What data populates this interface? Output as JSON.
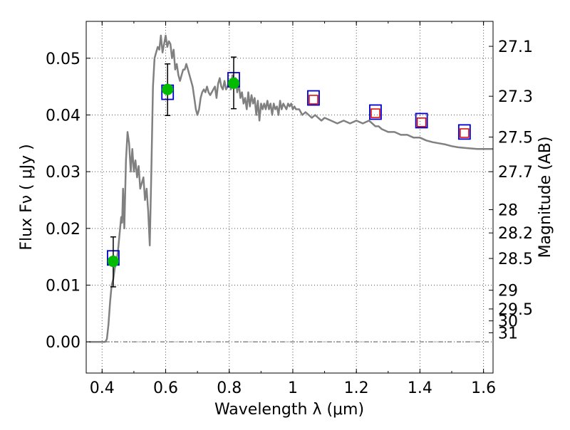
{
  "chart_data": {
    "type": "scatter",
    "title": "",
    "xlabel": "Wavelength  λ (μm)",
    "ylabel": "Flux  Fν  ( μJy )",
    "right_ylabel": "Magnitude (AB)",
    "xlim": [
      0.35,
      1.63
    ],
    "ylim": [
      -0.0055,
      0.0565
    ],
    "grid": true,
    "x_ticks": [
      0.4,
      0.6,
      0.8,
      1.0,
      1.2,
      1.4,
      1.6
    ],
    "x_tick_labels": [
      "0.4",
      "0.6",
      "0.8",
      "1",
      "1.2",
      "1.4",
      "1.6"
    ],
    "y_ticks": [
      0.0,
      0.01,
      0.02,
      0.03,
      0.04,
      0.05
    ],
    "y_tick_labels": [
      "0.00",
      "0.01",
      "0.02",
      "0.03",
      "0.04",
      "0.05"
    ],
    "right_ticks": [
      {
        "label": "27.1",
        "flux": 0.0521
      },
      {
        "label": "27.3",
        "flux": 0.0433
      },
      {
        "label": "27.5",
        "flux": 0.0361
      },
      {
        "label": "27.7",
        "flux": 0.03
      },
      {
        "label": "28",
        "flux": 0.0233
      },
      {
        "label": "28.2",
        "flux": 0.0192
      },
      {
        "label": "28.5",
        "flux": 0.0147
      },
      {
        "label": "29",
        "flux": 0.0091
      },
      {
        "label": "29.5",
        "flux": 0.0058
      },
      {
        "label": "30",
        "flux": 0.0037
      },
      {
        "label": "31",
        "flux": 0.0016
      }
    ],
    "colors": {
      "model": "#808080",
      "observed": "#00bb00",
      "model_box": "#0000cc",
      "predicted_box": "#dd0000",
      "errorbar": "#000000",
      "grid": "#555555"
    },
    "series": [
      {
        "kind": "model_spectrum",
        "points": [
          [
            0.36,
            0.0
          ],
          [
            0.4,
            0.0
          ],
          [
            0.41,
            0.0
          ],
          [
            0.415,
            0.0005
          ],
          [
            0.42,
            0.003
          ],
          [
            0.425,
            0.007
          ],
          [
            0.43,
            0.01
          ],
          [
            0.435,
            0.011
          ],
          [
            0.44,
            0.013
          ],
          [
            0.445,
            0.014
          ],
          [
            0.45,
            0.016
          ],
          [
            0.455,
            0.019
          ],
          [
            0.46,
            0.022
          ],
          [
            0.463,
            0.021
          ],
          [
            0.466,
            0.027
          ],
          [
            0.47,
            0.02
          ],
          [
            0.475,
            0.032
          ],
          [
            0.48,
            0.037
          ],
          [
            0.485,
            0.035
          ],
          [
            0.49,
            0.03
          ],
          [
            0.495,
            0.034
          ],
          [
            0.5,
            0.03
          ],
          [
            0.505,
            0.032
          ],
          [
            0.51,
            0.029
          ],
          [
            0.515,
            0.031
          ],
          [
            0.52,
            0.027
          ],
          [
            0.53,
            0.029
          ],
          [
            0.535,
            0.025
          ],
          [
            0.54,
            0.027
          ],
          [
            0.545,
            0.023
          ],
          [
            0.55,
            0.017
          ],
          [
            0.555,
            0.03
          ],
          [
            0.56,
            0.045
          ],
          [
            0.565,
            0.05
          ],
          [
            0.57,
            0.051
          ],
          [
            0.575,
            0.052
          ],
          [
            0.58,
            0.0515
          ],
          [
            0.585,
            0.054
          ],
          [
            0.59,
            0.051
          ],
          [
            0.595,
            0.0525
          ],
          [
            0.6,
            0.054
          ],
          [
            0.605,
            0.052
          ],
          [
            0.61,
            0.053
          ],
          [
            0.615,
            0.0525
          ],
          [
            0.62,
            0.05
          ],
          [
            0.625,
            0.0515
          ],
          [
            0.63,
            0.048
          ],
          [
            0.635,
            0.049
          ],
          [
            0.64,
            0.047
          ],
          [
            0.645,
            0.046
          ],
          [
            0.65,
            0.047
          ],
          [
            0.655,
            0.048
          ],
          [
            0.66,
            0.048
          ],
          [
            0.665,
            0.049
          ],
          [
            0.67,
            0.048
          ],
          [
            0.675,
            0.047
          ],
          [
            0.68,
            0.046
          ],
          [
            0.685,
            0.045
          ],
          [
            0.69,
            0.043
          ],
          [
            0.695,
            0.041
          ],
          [
            0.7,
            0.04
          ],
          [
            0.705,
            0.041
          ],
          [
            0.71,
            0.043
          ],
          [
            0.715,
            0.044
          ],
          [
            0.72,
            0.0445
          ],
          [
            0.725,
            0.044
          ],
          [
            0.73,
            0.045
          ],
          [
            0.735,
            0.044
          ],
          [
            0.74,
            0.0435
          ],
          [
            0.745,
            0.044
          ],
          [
            0.75,
            0.0445
          ],
          [
            0.755,
            0.045
          ],
          [
            0.76,
            0.043
          ],
          [
            0.765,
            0.0455
          ],
          [
            0.77,
            0.0465
          ],
          [
            0.775,
            0.045
          ],
          [
            0.78,
            0.0445
          ],
          [
            0.785,
            0.046
          ],
          [
            0.79,
            0.0445
          ],
          [
            0.795,
            0.045
          ],
          [
            0.8,
            0.046
          ],
          [
            0.805,
            0.0445
          ],
          [
            0.81,
            0.047
          ],
          [
            0.815,
            0.045
          ],
          [
            0.82,
            0.0465
          ],
          [
            0.825,
            0.044
          ],
          [
            0.83,
            0.0455
          ],
          [
            0.835,
            0.043
          ],
          [
            0.84,
            0.044
          ],
          [
            0.845,
            0.042
          ],
          [
            0.85,
            0.043
          ],
          [
            0.855,
            0.041
          ],
          [
            0.86,
            0.044
          ],
          [
            0.865,
            0.0415
          ],
          [
            0.87,
            0.0435
          ],
          [
            0.875,
            0.042
          ],
          [
            0.88,
            0.043
          ],
          [
            0.885,
            0.04
          ],
          [
            0.89,
            0.0425
          ],
          [
            0.895,
            0.039
          ],
          [
            0.9,
            0.042
          ],
          [
            0.905,
            0.041
          ],
          [
            0.91,
            0.042
          ],
          [
            0.915,
            0.041
          ],
          [
            0.92,
            0.0425
          ],
          [
            0.925,
            0.041
          ],
          [
            0.93,
            0.042
          ],
          [
            0.935,
            0.04
          ],
          [
            0.94,
            0.042
          ],
          [
            0.945,
            0.041
          ],
          [
            0.95,
            0.0415
          ],
          [
            0.955,
            0.04
          ],
          [
            0.96,
            0.0425
          ],
          [
            0.965,
            0.041
          ],
          [
            0.97,
            0.042
          ],
          [
            0.975,
            0.0415
          ],
          [
            0.98,
            0.041
          ],
          [
            0.985,
            0.042
          ],
          [
            0.99,
            0.0415
          ],
          [
            0.995,
            0.042
          ],
          [
            1.0,
            0.041
          ],
          [
            1.005,
            0.0415
          ],
          [
            1.01,
            0.041
          ],
          [
            1.02,
            0.041
          ],
          [
            1.03,
            0.04
          ],
          [
            1.04,
            0.0405
          ],
          [
            1.05,
            0.04
          ],
          [
            1.06,
            0.0395
          ],
          [
            1.07,
            0.04
          ],
          [
            1.08,
            0.0395
          ],
          [
            1.09,
            0.039
          ],
          [
            1.1,
            0.0395
          ],
          [
            1.12,
            0.039
          ],
          [
            1.14,
            0.0385
          ],
          [
            1.16,
            0.039
          ],
          [
            1.18,
            0.0385
          ],
          [
            1.2,
            0.039
          ],
          [
            1.22,
            0.0385
          ],
          [
            1.24,
            0.039
          ],
          [
            1.25,
            0.0385
          ],
          [
            1.26,
            0.038
          ],
          [
            1.27,
            0.038
          ],
          [
            1.28,
            0.0375
          ],
          [
            1.3,
            0.037
          ],
          [
            1.32,
            0.037
          ],
          [
            1.34,
            0.0365
          ],
          [
            1.36,
            0.0365
          ],
          [
            1.38,
            0.036
          ],
          [
            1.4,
            0.036
          ],
          [
            1.42,
            0.0355
          ],
          [
            1.44,
            0.0352
          ],
          [
            1.46,
            0.035
          ],
          [
            1.48,
            0.0348
          ],
          [
            1.5,
            0.0345
          ],
          [
            1.52,
            0.0343
          ],
          [
            1.54,
            0.0342
          ],
          [
            1.56,
            0.0341
          ],
          [
            1.58,
            0.034
          ],
          [
            1.6,
            0.034
          ],
          [
            1.63,
            0.034
          ]
        ]
      },
      {
        "kind": "observed",
        "points": [
          {
            "x": 0.435,
            "y": 0.0142,
            "err_low": 0.0097,
            "err_high": 0.0185
          },
          {
            "x": 0.606,
            "y": 0.0445,
            "err_low": 0.0399,
            "err_high": 0.049
          },
          {
            "x": 0.814,
            "y": 0.0456,
            "err_low": 0.0411,
            "err_high": 0.0502
          }
        ]
      },
      {
        "kind": "model_photometry",
        "points": [
          {
            "x": 0.435,
            "y": 0.0148
          },
          {
            "x": 0.606,
            "y": 0.044
          },
          {
            "x": 0.814,
            "y": 0.0462
          },
          {
            "x": 1.065,
            "y": 0.043
          },
          {
            "x": 1.26,
            "y": 0.0405
          },
          {
            "x": 1.405,
            "y": 0.039
          },
          {
            "x": 1.54,
            "y": 0.037
          }
        ]
      },
      {
        "kind": "predicted",
        "points": [
          {
            "x": 1.065,
            "y": 0.0427
          },
          {
            "x": 1.26,
            "y": 0.0403
          },
          {
            "x": 1.405,
            "y": 0.0387
          },
          {
            "x": 1.54,
            "y": 0.0368
          }
        ]
      }
    ]
  }
}
